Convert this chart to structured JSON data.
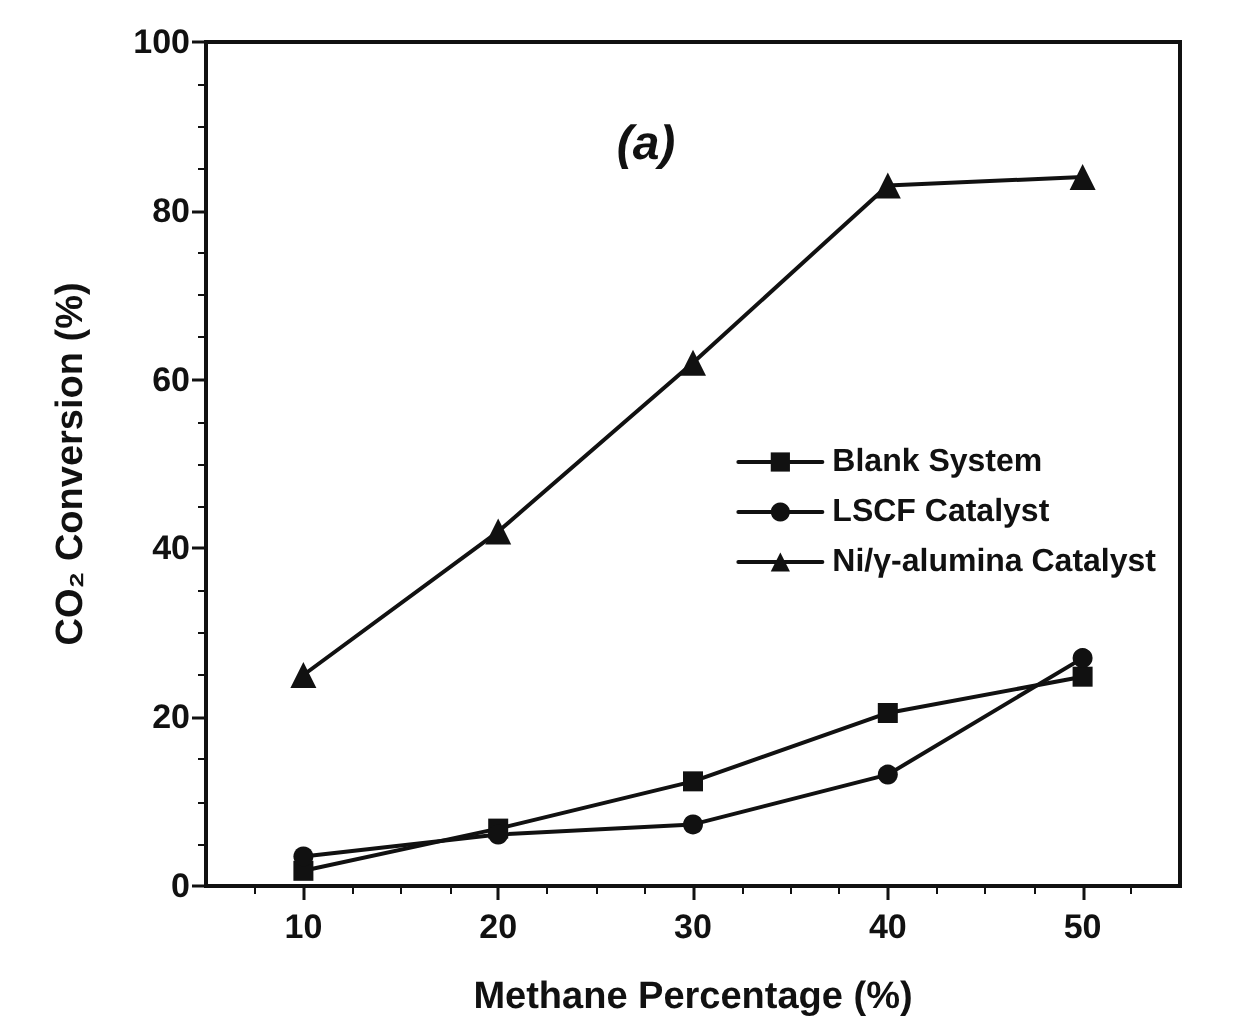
{
  "chart_data": {
    "type": "line",
    "title": "(a)",
    "xlabel": "Methane Percentage (%)",
    "ylabel": "CO₂ Conversion (%)",
    "x": [
      10,
      20,
      30,
      40,
      50
    ],
    "series": [
      {
        "name": "Blank System",
        "color": "#111111",
        "marker": "square",
        "values": [
          1.8,
          6.8,
          12.4,
          20.5,
          24.8
        ]
      },
      {
        "name": "LSCF Catalyst",
        "color": "#111111",
        "marker": "circle",
        "values": [
          3.5,
          6.1,
          7.3,
          13.2,
          27
        ]
      },
      {
        "name": "Ni/γ-alumina Catalyst",
        "color": "#111111",
        "marker": "triangle",
        "values": [
          25,
          42,
          62,
          83,
          84
        ]
      }
    ],
    "xlim": [
      5,
      55
    ],
    "xticks": [
      10,
      20,
      30,
      40,
      50
    ],
    "ylim": [
      0,
      100
    ],
    "yticks": [
      0,
      20,
      40,
      60,
      80,
      100
    ],
    "grid": false,
    "legend": "right",
    "line_style": "solid"
  }
}
